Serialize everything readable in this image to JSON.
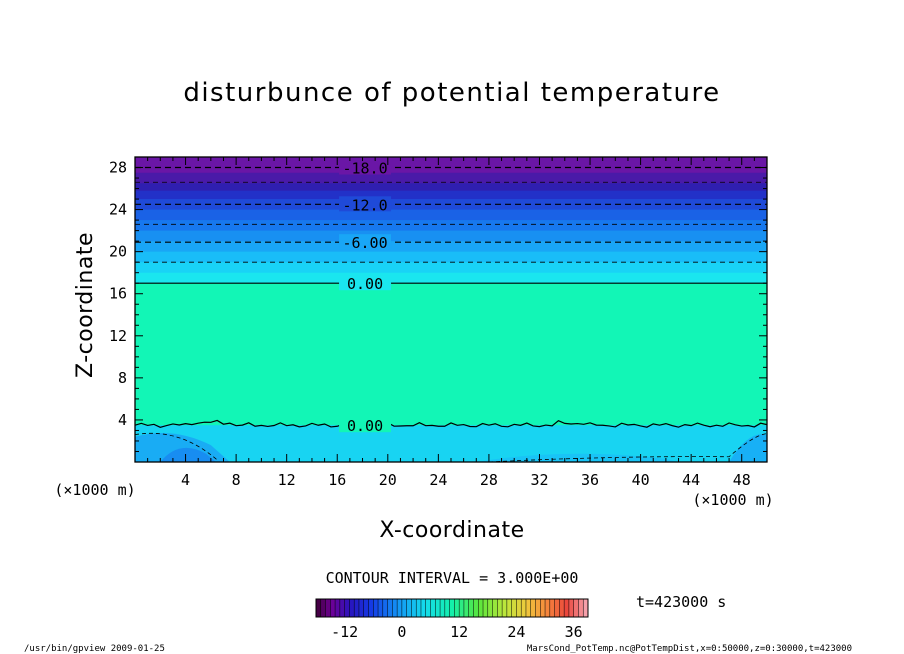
{
  "chart_data": {
    "type": "heatmap",
    "title": "disturbunce of potential temperature",
    "xlabel": "X-coordinate",
    "ylabel": "Z-coordinate",
    "x_unit": "(×1000 m)",
    "y_unit": "(×1000 m)",
    "xlim": [
      0,
      50
    ],
    "ylim": [
      0,
      29
    ],
    "x_ticks": [
      4,
      8,
      12,
      16,
      20,
      24,
      28,
      32,
      36,
      40,
      44,
      48
    ],
    "y_ticks": [
      4,
      8,
      12,
      16,
      20,
      24,
      28
    ],
    "contour_lines": [
      {
        "z": 28.0,
        "label": "-18.0",
        "style": "dashed"
      },
      {
        "z": 24.5,
        "label": "-12.0",
        "style": "dashed"
      },
      {
        "z": 20.9,
        "label": "-6.00",
        "style": "dashed"
      },
      {
        "z": 17.0,
        "label": "0.00",
        "style": "solid"
      },
      {
        "z": 3.5,
        "label": "0.00",
        "style": "solid"
      }
    ],
    "contour_interval_label": "CONTOUR INTERVAL = 3.000E+00",
    "time_label": "t=423000 s",
    "colorbar": {
      "min": -18,
      "max": 39,
      "ticks": [
        "-12",
        "0",
        "12",
        "24",
        "36"
      ],
      "tick_values": [
        -12,
        0,
        12,
        24,
        36
      ]
    },
    "bands": [
      {
        "z0": 27.5,
        "z1": 29,
        "color": "#6a16a6"
      },
      {
        "z0": 26.5,
        "z1": 27.5,
        "color": "#4a1aa8"
      },
      {
        "z0": 25.8,
        "z1": 26.5,
        "color": "#2f1fb0"
      },
      {
        "z0": 25.0,
        "z1": 25.8,
        "color": "#2231c8"
      },
      {
        "z0": 24.0,
        "z1": 25.0,
        "color": "#1f4ad8"
      },
      {
        "z0": 23.0,
        "z1": 24.0,
        "color": "#1a62e6"
      },
      {
        "z0": 22.0,
        "z1": 23.0,
        "color": "#1778ee"
      },
      {
        "z0": 21.0,
        "z1": 22.0,
        "color": "#1890f2"
      },
      {
        "z0": 20.0,
        "z1": 21.0,
        "color": "#19a6f6"
      },
      {
        "z0": 19.0,
        "z1": 20.0,
        "color": "#19bdf8"
      },
      {
        "z0": 18.0,
        "z1": 19.0,
        "color": "#19d3f6"
      },
      {
        "z0": 17.0,
        "z1": 18.0,
        "color": "#1ae6ef"
      },
      {
        "z0": 3.5,
        "z1": 17.0,
        "color": "#12f6b6"
      },
      {
        "z0": 0,
        "z1": 3.5,
        "color": "#18d4f2"
      }
    ]
  },
  "footer": {
    "left": "/usr/bin/gpview   2009-01-25",
    "right": "MarsCond_PotTemp.nc@PotTempDist,x=0:50000,z=0:30000,t=423000"
  },
  "colors": {
    "frame": "#000000",
    "background": "#ffffff"
  }
}
